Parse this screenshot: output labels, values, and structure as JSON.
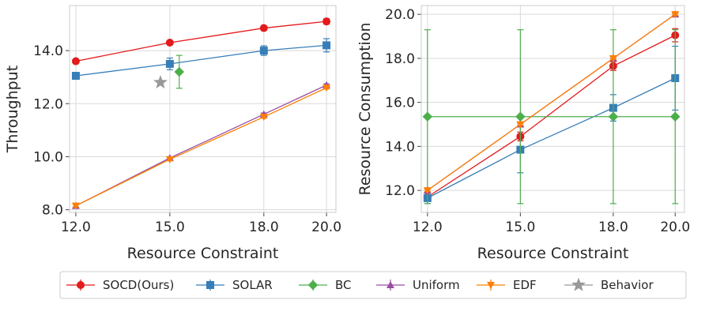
{
  "chart_data": [
    {
      "type": "line",
      "title": "",
      "xlabel": "Resource Constraint",
      "ylabel": "Throughput",
      "xlim": [
        11.8,
        20.3
      ],
      "ylim": [
        7.9,
        15.7
      ],
      "xticks": [
        12,
        15,
        18,
        20
      ],
      "xtick_labels": [
        "12.0",
        "15.0",
        "18.0",
        "20.0"
      ],
      "yticks": [
        8,
        10,
        12,
        14
      ],
      "ytick_labels": [
        "8.0",
        "10.0",
        "12.0",
        "14.0"
      ],
      "grid": true,
      "series": [
        {
          "name": "SOCD(Ours)",
          "color": "#e41a1c",
          "marker": "circle",
          "x": [
            12,
            15,
            18,
            20
          ],
          "y": [
            13.6,
            14.3,
            14.85,
            15.1
          ],
          "err": [
            0.05,
            0.05,
            0.05,
            0.1
          ]
        },
        {
          "name": "SOLAR",
          "color": "#377eb8",
          "marker": "square",
          "x": [
            12,
            15,
            18,
            20
          ],
          "y": [
            13.05,
            13.5,
            14.0,
            14.2
          ],
          "err": [
            0.05,
            0.22,
            0.18,
            0.25
          ]
        },
        {
          "name": "BC",
          "color": "#4daf4a",
          "marker": "diamond",
          "x": [
            15.3
          ],
          "y": [
            13.2
          ],
          "err": [
            0.62
          ]
        },
        {
          "name": "Uniform",
          "color": "#984ea3",
          "marker": "triangle-up",
          "x": [
            12,
            15,
            18,
            20
          ],
          "y": [
            8.15,
            9.95,
            11.6,
            12.7
          ],
          "err": [
            0.05,
            0.05,
            0.05,
            0.05
          ]
        },
        {
          "name": "EDF",
          "color": "#ff7f00",
          "marker": "triangle-down",
          "x": [
            12,
            15,
            18,
            20
          ],
          "y": [
            8.15,
            9.9,
            11.5,
            12.6
          ],
          "err": [
            0.05,
            0.05,
            0.05,
            0.05
          ]
        },
        {
          "name": "Behavior",
          "color": "#999999",
          "marker": "star",
          "x": [
            14.7
          ],
          "y": [
            12.8
          ],
          "err": [
            0
          ]
        }
      ]
    },
    {
      "type": "line",
      "title": "",
      "xlabel": "Resource Constraint",
      "ylabel": "Resource Consumption",
      "xlim": [
        11.8,
        20.3
      ],
      "ylim": [
        11.0,
        20.4
      ],
      "xticks": [
        12,
        15,
        18,
        20
      ],
      "xtick_labels": [
        "12.0",
        "15.0",
        "18.0",
        "20.0"
      ],
      "yticks": [
        12,
        14,
        16,
        18,
        20
      ],
      "ytick_labels": [
        "12.0",
        "14.0",
        "16.0",
        "18.0",
        "20.0"
      ],
      "grid": true,
      "series": [
        {
          "name": "SOCD(Ours)",
          "color": "#e41a1c",
          "marker": "circle",
          "x": [
            12,
            15,
            18,
            20
          ],
          "y": [
            11.7,
            14.45,
            17.65,
            19.05
          ],
          "err": [
            0.1,
            0.2,
            0.2,
            0.3
          ]
        },
        {
          "name": "SOLAR",
          "color": "#377eb8",
          "marker": "square",
          "x": [
            12,
            15,
            18,
            20
          ],
          "y": [
            11.65,
            13.85,
            15.75,
            17.1
          ],
          "err": [
            0.25,
            1.05,
            0.6,
            1.45
          ]
        },
        {
          "name": "BC",
          "color": "#4daf4a",
          "marker": "diamond",
          "x": [
            12,
            15,
            18,
            20
          ],
          "y": [
            15.35,
            15.35,
            15.35,
            15.35
          ],
          "err": [
            3.95,
            3.95,
            3.95,
            3.95
          ]
        },
        {
          "name": "Uniform",
          "color": "#984ea3",
          "marker": "triangle-up",
          "x": [
            12,
            15,
            18,
            20
          ],
          "y": [
            12.0,
            15.0,
            18.0,
            20.0
          ],
          "err": [
            0.05,
            0.05,
            0.05,
            0.05
          ]
        },
        {
          "name": "EDF",
          "color": "#ff7f00",
          "marker": "triangle-down",
          "x": [
            12,
            15,
            18,
            20
          ],
          "y": [
            12.0,
            15.0,
            18.0,
            20.0
          ],
          "err": [
            0.05,
            0.05,
            0.05,
            0.05
          ]
        }
      ]
    }
  ],
  "legend": {
    "placement": "bottom-center",
    "entries": [
      {
        "label": "SOCD(Ours)",
        "color": "#e41a1c",
        "marker": "circle"
      },
      {
        "label": "SOLAR",
        "color": "#377eb8",
        "marker": "square"
      },
      {
        "label": "BC",
        "color": "#4daf4a",
        "marker": "diamond"
      },
      {
        "label": "Uniform",
        "color": "#984ea3",
        "marker": "triangle-up"
      },
      {
        "label": "EDF",
        "color": "#ff7f00",
        "marker": "triangle-down"
      },
      {
        "label": "Behavior",
        "color": "#999999",
        "marker": "star"
      }
    ]
  }
}
